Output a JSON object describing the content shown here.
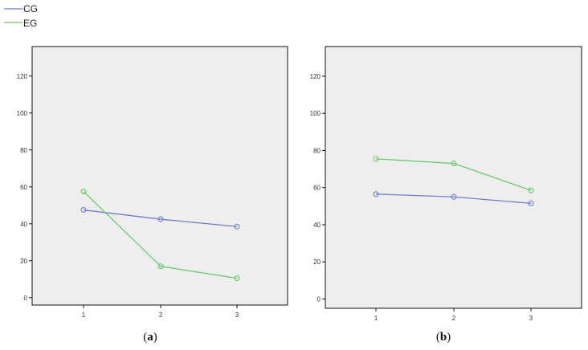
{
  "legend": [
    {
      "name": "CG",
      "color": "#6f7fd0"
    },
    {
      "name": "EG",
      "color": "#66cc66"
    }
  ],
  "chart_data": [
    {
      "type": "line",
      "caption": "a",
      "x": [
        1,
        2,
        3
      ],
      "xticks": [
        "1",
        "2",
        "3"
      ],
      "yticks": [
        "0",
        "20",
        "40",
        "60",
        "80",
        "100",
        "120"
      ],
      "ylim": [
        -4,
        136
      ],
      "grid": false,
      "background": "#eeeeee",
      "series": [
        {
          "name": "CG",
          "values": [
            47.5,
            42.5,
            38.5
          ]
        },
        {
          "name": "EG",
          "values": [
            57.5,
            17,
            10.5
          ]
        }
      ]
    },
    {
      "type": "line",
      "caption": "b",
      "x": [
        1,
        2,
        3
      ],
      "xticks": [
        "1",
        "2",
        "3"
      ],
      "yticks": [
        "0",
        "20",
        "40",
        "60",
        "80",
        "100",
        "120"
      ],
      "ylim": [
        -5,
        136
      ],
      "grid": false,
      "background": "#eeeeee",
      "series": [
        {
          "name": "CG",
          "values": [
            56.5,
            55,
            51.5
          ]
        },
        {
          "name": "EG",
          "values": [
            75.5,
            73,
            58.5
          ]
        }
      ]
    }
  ]
}
